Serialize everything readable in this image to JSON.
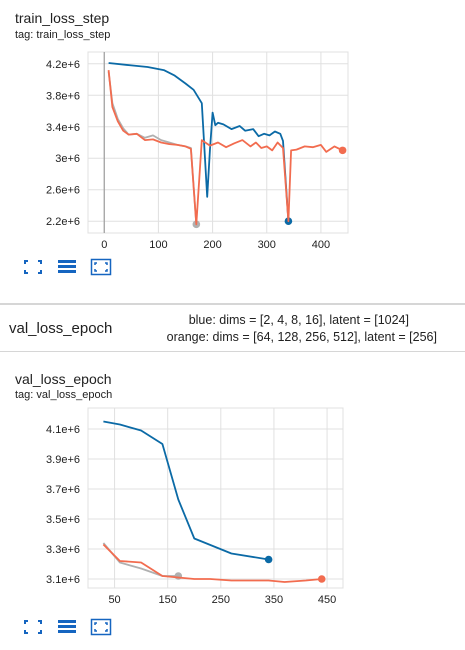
{
  "cards": [
    {
      "title": "train_loss_step",
      "tag": "tag: train_loss_step"
    },
    {
      "title": "val_loss_epoch",
      "tag": "tag: val_loss_epoch"
    }
  ],
  "section": {
    "title": "val_loss_epoch",
    "legend_blue": "blue: dims = [2, 4, 8, 16], latent = [1024]",
    "legend_orange": "orange: dims = [64, 128, 256, 512], latent = [256]"
  },
  "colors": {
    "blue": "#0b6aa6",
    "orange": "#f26c4f",
    "gray": "#b0b0b0",
    "grid": "#e0e0e0",
    "toolbar": "#1565c0"
  },
  "toolbar_icons": [
    "fullscreen-icon",
    "data-table-icon",
    "fit-domain-icon"
  ],
  "chart_data": [
    {
      "type": "line",
      "title": "train_loss_step",
      "xlim": [
        -30,
        450
      ],
      "ylim": [
        2050000,
        4350000
      ],
      "x_ticks": [
        0,
        100,
        200,
        300,
        400
      ],
      "x_tick_labels": [
        "0",
        "100",
        "200",
        "300",
        "400"
      ],
      "y_ticks": [
        2200000,
        2600000,
        3000000,
        3400000,
        3800000,
        4200000
      ],
      "y_tick_labels": [
        "2.2e+6",
        "2.6e+6",
        "3e+6",
        "3.4e+6",
        "3.8e+6",
        "4.2e+6"
      ],
      "vertical_marker_x": 0,
      "series": [
        {
          "color_key": "blue",
          "x": [
            8,
            50,
            80,
            110,
            130,
            150,
            165,
            180,
            190,
            195,
            200,
            205,
            210,
            220,
            235,
            250,
            260,
            275,
            285,
            295,
            305,
            315,
            325,
            330,
            340
          ],
          "y": [
            4210000,
            4180000,
            4160000,
            4120000,
            4050000,
            3950000,
            3870000,
            3700000,
            2510000,
            3100000,
            3580000,
            3420000,
            3450000,
            3430000,
            3370000,
            3410000,
            3350000,
            3370000,
            3280000,
            3310000,
            3290000,
            3340000,
            3310000,
            3220000,
            2200000
          ],
          "end_marker": true
        },
        {
          "color_key": "gray",
          "x": [
            8,
            15,
            25,
            35,
            45,
            60,
            75,
            90,
            105,
            120,
            135,
            150,
            160,
            170
          ],
          "y": [
            4100000,
            3700000,
            3500000,
            3380000,
            3300000,
            3310000,
            3260000,
            3290000,
            3230000,
            3200000,
            3170000,
            3150000,
            3130000,
            2160000
          ],
          "end_marker": true
        },
        {
          "color_key": "orange",
          "x": [
            8,
            15,
            25,
            35,
            45,
            60,
            75,
            90,
            105,
            120,
            135,
            150,
            160,
            170,
            180,
            195,
            210,
            225,
            240,
            255,
            270,
            280,
            290,
            300,
            310,
            320,
            330,
            340,
            345,
            355,
            370,
            385,
            400,
            410,
            425,
            440
          ],
          "y": [
            4120000,
            3650000,
            3470000,
            3350000,
            3300000,
            3310000,
            3230000,
            3240000,
            3200000,
            3180000,
            3170000,
            3150000,
            3120000,
            2160000,
            3230000,
            3160000,
            3200000,
            3140000,
            3190000,
            3230000,
            3150000,
            3200000,
            3130000,
            3150000,
            3100000,
            3200000,
            3130000,
            2200000,
            3100000,
            3110000,
            3150000,
            3140000,
            3170000,
            3080000,
            3150000,
            3100000
          ],
          "end_marker": true
        }
      ]
    },
    {
      "type": "line",
      "title": "val_loss_epoch",
      "xlim": [
        0,
        480
      ],
      "ylim": [
        3040000,
        4240000
      ],
      "x_ticks": [
        50,
        150,
        250,
        350,
        450
      ],
      "x_tick_labels": [
        "50",
        "150",
        "250",
        "350",
        "450"
      ],
      "y_ticks": [
        3100000,
        3300000,
        3500000,
        3700000,
        3900000,
        4100000
      ],
      "y_tick_labels": [
        "3.1e+6",
        "3.3e+6",
        "3.5e+6",
        "3.7e+6",
        "3.9e+6",
        "4.1e+6"
      ],
      "series": [
        {
          "color_key": "blue",
          "x": [
            29,
            60,
            100,
            140,
            170,
            200,
            270,
            340
          ],
          "y": [
            4150000,
            4130000,
            4090000,
            4000000,
            3630000,
            3370000,
            3270000,
            3230000
          ],
          "end_marker": true
        },
        {
          "color_key": "gray",
          "x": [
            29,
            60,
            100,
            140,
            170
          ],
          "y": [
            3340000,
            3210000,
            3170000,
            3120000,
            3120000
          ],
          "end_marker": true
        },
        {
          "color_key": "orange",
          "x": [
            29,
            60,
            100,
            140,
            170,
            200,
            230,
            270,
            300,
            340,
            370,
            410,
            440
          ],
          "y": [
            3330000,
            3220000,
            3210000,
            3120000,
            3110000,
            3100000,
            3100000,
            3090000,
            3090000,
            3090000,
            3080000,
            3090000,
            3100000
          ],
          "end_marker": true
        }
      ]
    }
  ]
}
